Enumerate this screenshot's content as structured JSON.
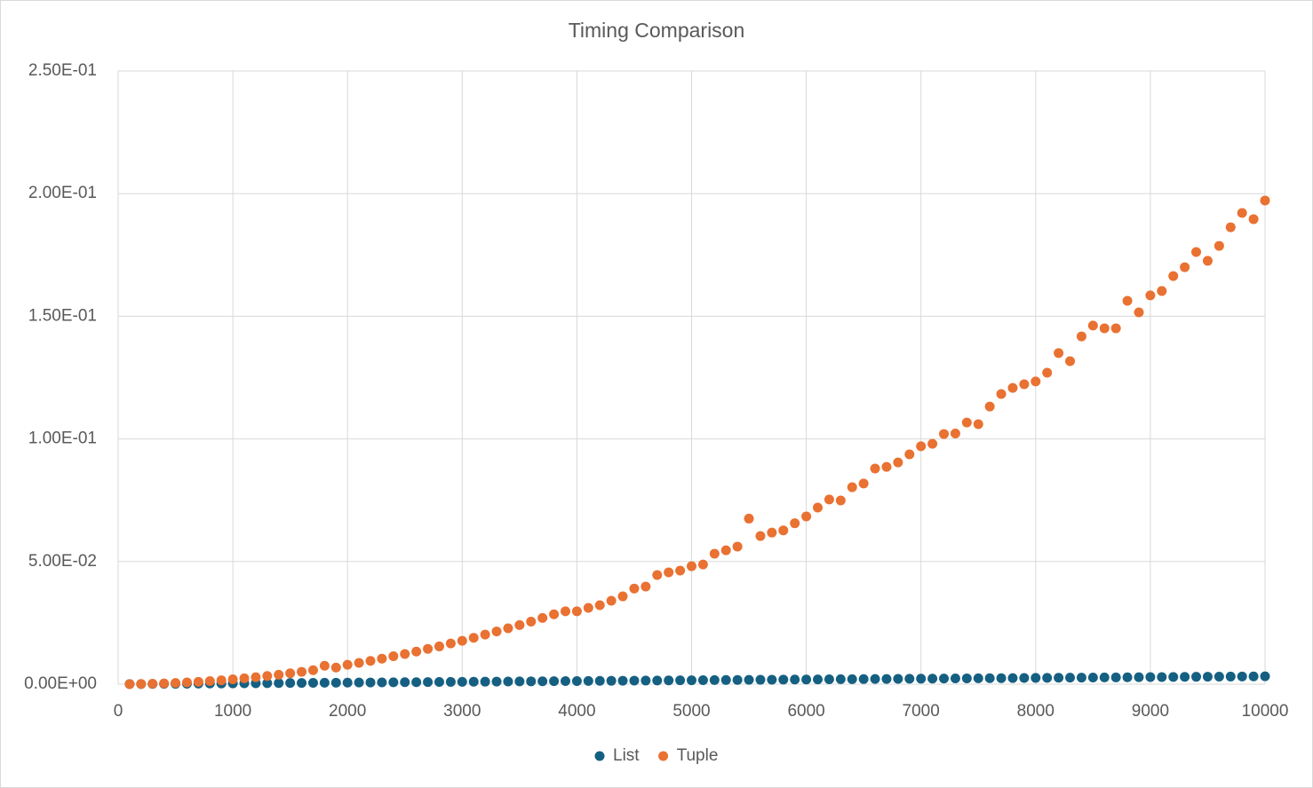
{
  "chart_data": {
    "type": "scatter",
    "title": "Timing Comparison",
    "x": [
      100,
      200,
      300,
      400,
      500,
      600,
      700,
      800,
      900,
      1000,
      1100,
      1200,
      1300,
      1400,
      1500,
      1600,
      1700,
      1800,
      1900,
      2000,
      2100,
      2200,
      2300,
      2400,
      2500,
      2600,
      2700,
      2800,
      2900,
      3000,
      3100,
      3200,
      3300,
      3400,
      3500,
      3600,
      3700,
      3800,
      3900,
      4000,
      4100,
      4200,
      4300,
      4400,
      4500,
      4600,
      4700,
      4800,
      4900,
      5000,
      5100,
      5200,
      5300,
      5400,
      5500,
      5600,
      5700,
      5800,
      5900,
      6000,
      6100,
      6200,
      6300,
      6400,
      6500,
      6600,
      6700,
      6800,
      6900,
      7000,
      7100,
      7200,
      7300,
      7400,
      7500,
      7600,
      7700,
      7800,
      7900,
      8000,
      8100,
      8200,
      8300,
      8400,
      8500,
      8600,
      8700,
      8800,
      8900,
      9000,
      9100,
      9200,
      9300,
      9400,
      9500,
      9600,
      9700,
      9800,
      9900,
      10000
    ],
    "series": [
      {
        "name": "List",
        "color": "#156082",
        "values": [
          3e-05,
          6e-05,
          0.0001,
          0.00013,
          0.00016,
          0.00019,
          0.00022,
          0.00026,
          0.00029,
          0.00032,
          0.00035,
          0.00038,
          0.00042,
          0.00045,
          0.00048,
          0.00051,
          0.00054,
          0.00058,
          0.00061,
          0.00064,
          0.00067,
          0.0007,
          0.00074,
          0.00077,
          0.0008,
          0.00083,
          0.00086,
          0.0009,
          0.00093,
          0.00096,
          0.00099,
          0.00102,
          0.00106,
          0.00109,
          0.00112,
          0.00115,
          0.00118,
          0.00122,
          0.00125,
          0.00128,
          0.00131,
          0.00134,
          0.00138,
          0.00141,
          0.00144,
          0.00147,
          0.0015,
          0.00154,
          0.00157,
          0.0016,
          0.00163,
          0.00166,
          0.0017,
          0.00173,
          0.00176,
          0.00179,
          0.00182,
          0.00186,
          0.00189,
          0.00192,
          0.00195,
          0.00198,
          0.00202,
          0.00205,
          0.00208,
          0.00211,
          0.00214,
          0.00218,
          0.00221,
          0.00224,
          0.00227,
          0.0023,
          0.00234,
          0.00237,
          0.0024,
          0.00243,
          0.00246,
          0.0025,
          0.00253,
          0.00256,
          0.00259,
          0.00262,
          0.00266,
          0.00269,
          0.00272,
          0.00275,
          0.00278,
          0.00282,
          0.00285,
          0.00288,
          0.00291,
          0.00294,
          0.00298,
          0.00301,
          0.00304,
          0.00307,
          0.0031,
          0.00314,
          0.00317,
          0.0032
        ]
      },
      {
        "name": "Tuple",
        "color": "#e97132",
        "values": [
          2e-05,
          8e-05,
          0.00018,
          0.00032,
          0.00049,
          0.00071,
          0.00097,
          0.00126,
          0.0016,
          0.00197,
          0.00238,
          0.00284,
          0.00333,
          0.00386,
          0.00443,
          0.00504,
          0.00569,
          0.0075,
          0.0068,
          0.0079,
          0.0087,
          0.0095,
          0.0104,
          0.0114,
          0.0123,
          0.0133,
          0.0144,
          0.0154,
          0.0166,
          0.0177,
          0.0189,
          0.0202,
          0.0215,
          0.0228,
          0.0241,
          0.0255,
          0.027,
          0.0285,
          0.0297,
          0.0297,
          0.0311,
          0.0322,
          0.034,
          0.0358,
          0.039,
          0.0398,
          0.0445,
          0.0456,
          0.0463,
          0.0481,
          0.0488,
          0.0532,
          0.0546,
          0.0561,
          0.0675,
          0.0604,
          0.0618,
          0.0627,
          0.0656,
          0.0684,
          0.072,
          0.0753,
          0.0749,
          0.0803,
          0.0818,
          0.0879,
          0.0886,
          0.0904,
          0.0937,
          0.097,
          0.098,
          0.102,
          0.1022,
          0.1067,
          0.106,
          0.1132,
          0.1183,
          0.1208,
          0.1223,
          0.1234,
          0.127,
          0.135,
          0.1317,
          0.1418,
          0.1462,
          0.1451,
          0.1451,
          0.1563,
          0.1516,
          0.1585,
          0.1603,
          0.1664,
          0.17,
          0.1762,
          0.1726,
          0.1787,
          0.1863,
          0.1921,
          0.1896,
          0.1972
        ]
      }
    ],
    "xlim": [
      0,
      10000
    ],
    "xticks": [
      0,
      1000,
      2000,
      3000,
      4000,
      5000,
      6000,
      7000,
      8000,
      9000,
      10000
    ],
    "ylim": [
      0,
      0.25
    ],
    "yticks": [
      {
        "value": 0,
        "label": "0.00E+00"
      },
      {
        "value": 0.05,
        "label": "5.00E-02"
      },
      {
        "value": 0.1,
        "label": "1.00E-01"
      },
      {
        "value": 0.15,
        "label": "1.50E-01"
      },
      {
        "value": 0.2,
        "label": "2.00E-01"
      },
      {
        "value": 0.25,
        "label": "2.50E-01"
      }
    ],
    "grid": true,
    "legend": "bottom"
  }
}
